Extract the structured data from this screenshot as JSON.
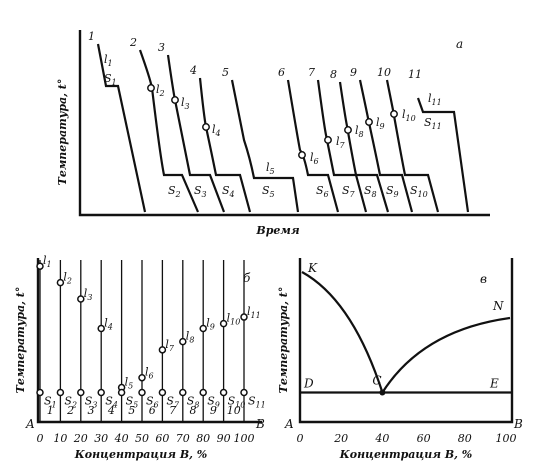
{
  "panel_a": {
    "letter": "a",
    "ylabel": "Температура, t°",
    "xlabel": "Время",
    "curves": [
      {
        "num": "1",
        "l": "l",
        "lsub": "1",
        "s": "S",
        "ssub": "1"
      },
      {
        "num": "2",
        "l": "l",
        "lsub": "2",
        "s": "S",
        "ssub": "2"
      },
      {
        "num": "3",
        "l": "l",
        "lsub": "3",
        "s": "S",
        "ssub": "3"
      },
      {
        "num": "4",
        "l": "l",
        "lsub": "4",
        "s": "S",
        "ssub": "4"
      },
      {
        "num": "5",
        "l": "l",
        "lsub": "5",
        "s": "S",
        "ssub": "5"
      },
      {
        "num": "6",
        "l": "l",
        "lsub": "6",
        "s": "S",
        "ssub": "6"
      },
      {
        "num": "7",
        "l": "l",
        "lsub": "7",
        "s": "S",
        "ssub": "7"
      },
      {
        "num": "8",
        "l": "l",
        "lsub": "8",
        "s": "S",
        "ssub": "8"
      },
      {
        "num": "9",
        "l": "l",
        "lsub": "9",
        "s": "S",
        "ssub": "9"
      },
      {
        "num": "10",
        "l": "l",
        "lsub": "10",
        "s": "S",
        "ssub": "10"
      },
      {
        "num": "11",
        "l": "l",
        "lsub": "11",
        "s": "S",
        "ssub": "11"
      }
    ]
  },
  "panel_b": {
    "letter": "б",
    "ylabel": "Температура, t°",
    "xlabel": "Концентрация В, %",
    "corner_left": "A",
    "corner_right": "B",
    "ticks": [
      "0",
      "10",
      "20",
      "30",
      "40",
      "50",
      "60",
      "70",
      "80",
      "90",
      "100"
    ],
    "column_numbers": [
      "1",
      "2",
      "3",
      "4",
      "5",
      "6",
      "7",
      "8",
      "9",
      "10"
    ],
    "liquidus_concentrations": [
      0,
      10,
      20,
      30,
      40,
      50,
      60,
      70,
      80,
      90,
      100
    ],
    "liquidus_temperature_fraction": [
      0.95,
      0.85,
      0.75,
      0.57,
      0.21,
      0.27,
      0.44,
      0.49,
      0.57,
      0.6,
      0.64
    ],
    "solidus_temperature_fraction": 0.18
  },
  "panel_c": {
    "letter": "в",
    "ylabel": "Температура, t°",
    "xlabel": "Концентрация В, %",
    "corner_left": "A",
    "corner_right": "B",
    "ticks": [
      "0",
      "20",
      "40",
      "60",
      "80",
      "100"
    ],
    "points": {
      "K": "K",
      "N": "N",
      "C": "C",
      "D": "D",
      "E": "E"
    },
    "eutectic_concentration": 40,
    "eutectic_temperature_fraction": 0.18
  }
}
